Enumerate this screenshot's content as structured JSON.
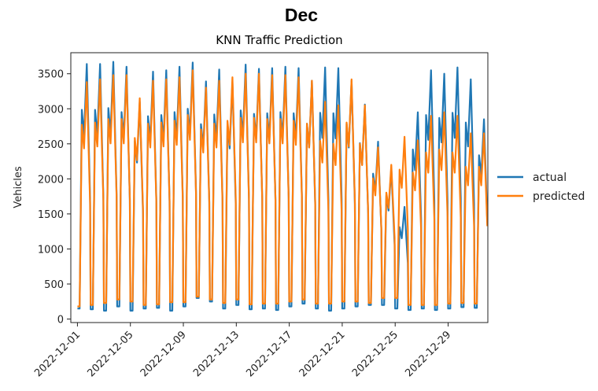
{
  "figure": {
    "suptitle": "Dec"
  },
  "chart_data": {
    "type": "line",
    "title": "KNN Traffic Prediction",
    "xlabel": "",
    "ylabel": "Vehicles",
    "xlim": [
      "2022-11-30T12:00",
      "2023-01-01T00:00"
    ],
    "ylim": [
      -50,
      3800
    ],
    "yticks": [
      0,
      500,
      1000,
      1500,
      2000,
      2500,
      3000,
      3500
    ],
    "xtick_labels": [
      "2022-12-01",
      "2022-12-05",
      "2022-12-09",
      "2022-12-13",
      "2022-12-17",
      "2022-12-21",
      "2022-12-25",
      "2022-12-29"
    ],
    "grid": false,
    "legend_position": "center-right outside",
    "x": [
      "2022-12-01",
      "2022-12-02",
      "2022-12-03",
      "2022-12-04",
      "2022-12-05",
      "2022-12-06",
      "2022-12-07",
      "2022-12-08",
      "2022-12-09",
      "2022-12-10",
      "2022-12-11",
      "2022-12-12",
      "2022-12-13",
      "2022-12-14",
      "2022-12-15",
      "2022-12-16",
      "2022-12-17",
      "2022-12-18",
      "2022-12-19",
      "2022-12-20",
      "2022-12-21",
      "2022-12-22",
      "2022-12-23",
      "2022-12-24",
      "2022-12-25",
      "2022-12-26",
      "2022-12-27",
      "2022-12-28",
      "2022-12-29",
      "2022-12-30",
      "2022-12-31"
    ],
    "series": [
      {
        "name": "actual",
        "color": "#1f77b4",
        "daily_peak": [
          3640,
          3640,
          3670,
          3600,
          3100,
          3530,
          3550,
          3600,
          3660,
          3390,
          3560,
          3380,
          3630,
          3570,
          3580,
          3600,
          3580,
          3400,
          3590,
          3580,
          3400,
          3060,
          2530,
          2150,
          1600,
          2950,
          3550,
          3500,
          3590,
          3420,
          2850
        ],
        "daily_trough": [
          150,
          140,
          120,
          180,
          120,
          150,
          160,
          120,
          180,
          300,
          250,
          150,
          200,
          140,
          150,
          130,
          180,
          220,
          150,
          120,
          150,
          180,
          200,
          200,
          150,
          130,
          150,
          130,
          150,
          170,
          160
        ]
      },
      {
        "name": "predicted",
        "color": "#ff7f0e",
        "daily_peak": [
          3380,
          3420,
          3480,
          3480,
          3150,
          3400,
          3420,
          3450,
          3550,
          3300,
          3400,
          3450,
          3500,
          3500,
          3480,
          3480,
          3450,
          3400,
          3100,
          3050,
          3420,
          3050,
          2450,
          2200,
          2600,
          2550,
          2900,
          2950,
          2900,
          2650,
          2650
        ],
        "daily_trough": [
          180,
          200,
          230,
          280,
          250,
          200,
          210,
          240,
          240,
          320,
          280,
          230,
          280,
          210,
          220,
          220,
          250,
          280,
          220,
          220,
          250,
          250,
          230,
          300,
          300,
          200,
          200,
          200,
          220,
          230,
          220
        ]
      }
    ]
  }
}
